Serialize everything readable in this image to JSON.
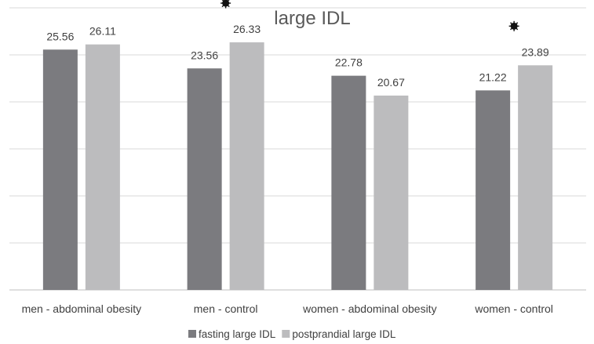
{
  "chart_data": {
    "type": "bar",
    "title": "large IDL",
    "categories": [
      "men - abdominal obesity",
      "men - control",
      "women - abdominal obesity",
      "women - control"
    ],
    "series": [
      {
        "name": "fasting large IDL",
        "values": [
          25.56,
          23.56,
          22.78,
          21.22
        ],
        "color": "#7b7b7f"
      },
      {
        "name": "postprandial large IDL",
        "values": [
          26.11,
          26.33,
          20.67,
          23.89
        ],
        "color": "#bcbcbe"
      }
    ],
    "value_labels": [
      [
        "25.56",
        "23.56",
        "22.78",
        "21.22"
      ],
      [
        "26.11",
        "26.33",
        "20.67",
        "23.89"
      ]
    ],
    "significance_markers": [
      false,
      true,
      false,
      true
    ],
    "ylim": [
      0,
      30
    ],
    "yticks": [
      0,
      5,
      10,
      15,
      20,
      25,
      30
    ],
    "grid": true,
    "legend_position": "bottom",
    "xlabel": "",
    "ylabel": ""
  }
}
